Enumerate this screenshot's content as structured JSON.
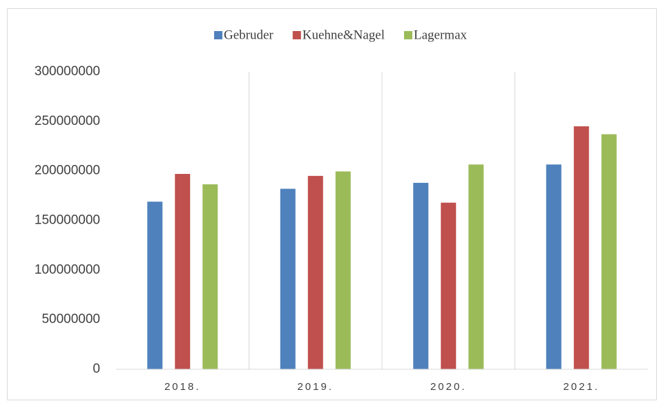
{
  "chart_data": {
    "type": "bar",
    "categories": [
      "2018.",
      "2019.",
      "2020.",
      "2021."
    ],
    "series": [
      {
        "name": "Gebruder",
        "color": "#4f81bd",
        "values": [
          169000000,
          182000000,
          188000000,
          206500000
        ]
      },
      {
        "name": "Kuehne&Nagel",
        "color": "#c0504d",
        "values": [
          197000000,
          195000000,
          168000000,
          245000000
        ]
      },
      {
        "name": "Lagermax",
        "color": "#9bbb59",
        "values": [
          186500000,
          199500000,
          206500000,
          237000000
        ]
      }
    ],
    "ylim": [
      0,
      300000000
    ],
    "yticks": [
      0,
      50000000,
      100000000,
      150000000,
      200000000,
      250000000,
      300000000
    ],
    "legend": "top"
  }
}
